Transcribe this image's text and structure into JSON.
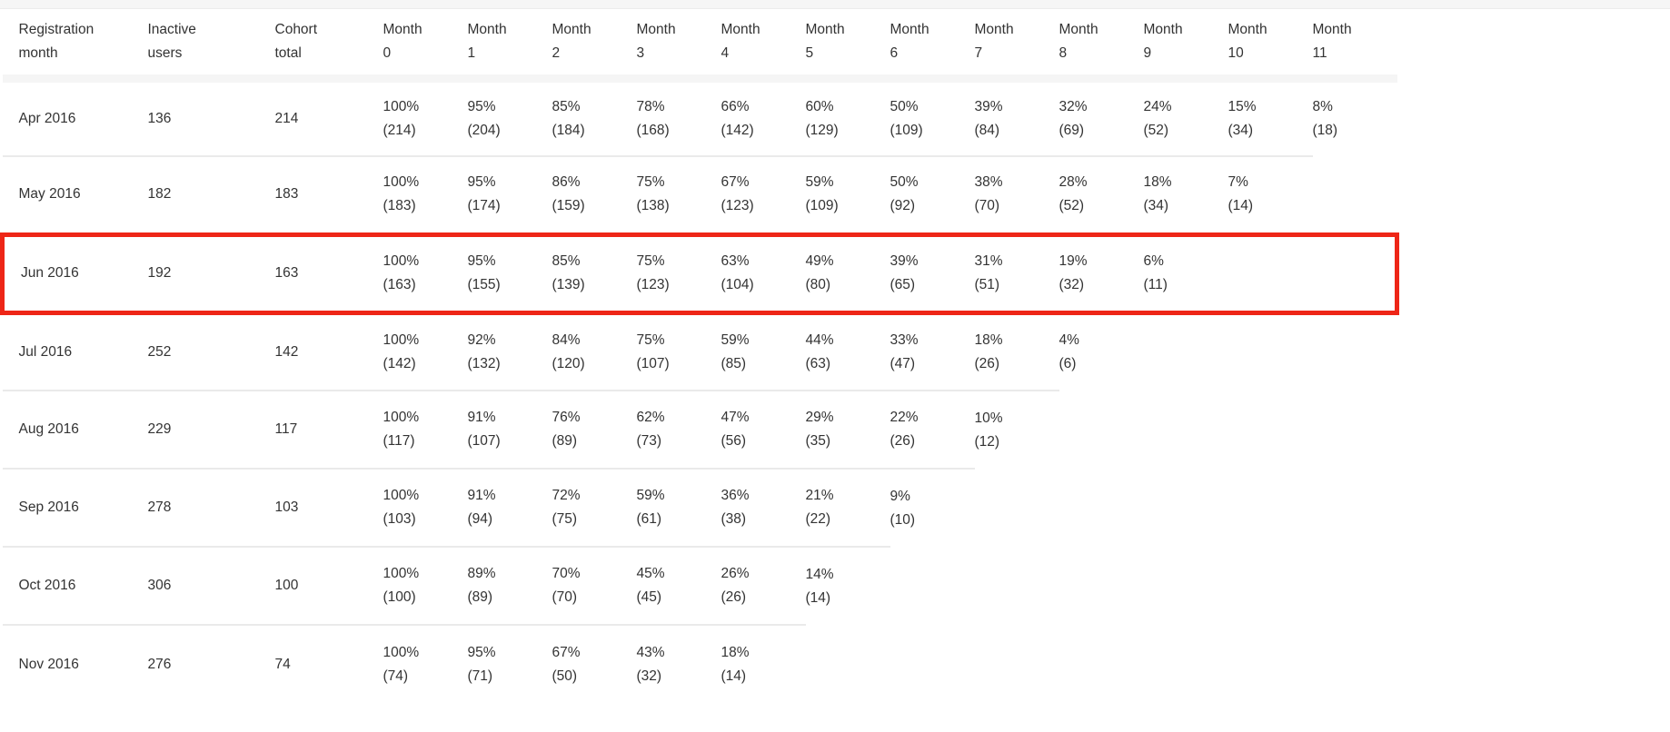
{
  "chart_data": {
    "type": "table",
    "title": "",
    "columns": [
      "Registration\nmonth",
      "Inactive\nusers",
      "Cohort\ntotal",
      "Month\n0",
      "Month\n1",
      "Month\n2",
      "Month\n3",
      "Month\n4",
      "Month\n5",
      "Month\n6",
      "Month\n7",
      "Month\n8",
      "Month\n9",
      "Month\n10",
      "Month\n11"
    ],
    "month_column_count": 12,
    "rows": [
      {
        "registration_month": "Apr 2016",
        "inactive_users": 136,
        "cohort_total": 214,
        "retention_pct": [
          100,
          95,
          85,
          78,
          66,
          60,
          50,
          39,
          32,
          24,
          15,
          8
        ],
        "retention_counts": [
          214,
          204,
          184,
          168,
          142,
          129,
          109,
          84,
          69,
          52,
          34,
          18
        ]
      },
      {
        "registration_month": "May 2016",
        "inactive_users": 182,
        "cohort_total": 183,
        "retention_pct": [
          100,
          95,
          86,
          75,
          67,
          59,
          50,
          38,
          28,
          18,
          7
        ],
        "retention_counts": [
          183,
          174,
          159,
          138,
          123,
          109,
          92,
          70,
          52,
          34,
          14
        ]
      },
      {
        "registration_month": "Jun 2016",
        "inactive_users": 192,
        "cohort_total": 163,
        "retention_pct": [
          100,
          95,
          85,
          75,
          63,
          49,
          39,
          31,
          19,
          6
        ],
        "retention_counts": [
          163,
          155,
          139,
          123,
          104,
          80,
          65,
          51,
          32,
          11
        ]
      },
      {
        "registration_month": "Jul 2016",
        "inactive_users": 252,
        "cohort_total": 142,
        "retention_pct": [
          100,
          92,
          84,
          75,
          59,
          44,
          33,
          18,
          4
        ],
        "retention_counts": [
          142,
          132,
          120,
          107,
          85,
          63,
          47,
          26,
          6
        ]
      },
      {
        "registration_month": "Aug 2016",
        "inactive_users": 229,
        "cohort_total": 117,
        "retention_pct": [
          100,
          91,
          76,
          62,
          47,
          29,
          22,
          10
        ],
        "retention_counts": [
          117,
          107,
          89,
          73,
          56,
          35,
          26,
          12
        ]
      },
      {
        "registration_month": "Sep 2016",
        "inactive_users": 278,
        "cohort_total": 103,
        "retention_pct": [
          100,
          91,
          72,
          59,
          36,
          21,
          9
        ],
        "retention_counts": [
          103,
          94,
          75,
          61,
          38,
          22,
          10
        ]
      },
      {
        "registration_month": "Oct 2016",
        "inactive_users": 306,
        "cohort_total": 100,
        "retention_pct": [
          100,
          89,
          70,
          45,
          26,
          14
        ],
        "retention_counts": [
          100,
          89,
          70,
          45,
          26,
          14
        ]
      },
      {
        "registration_month": "Nov 2016",
        "inactive_users": 276,
        "cohort_total": 74,
        "retention_pct": [
          100,
          95,
          67,
          43,
          18
        ],
        "retention_counts": [
          74,
          71,
          50,
          32,
          14
        ]
      }
    ],
    "highlight": {
      "row": "Jun 2016",
      "color": "#ee2617",
      "border_px": 5
    },
    "cell_format": "pct% (count)",
    "layout": {
      "grid": "row-separators-only",
      "header_band_color": "#f5f5f5",
      "row_line_color": "#eaeaea"
    }
  }
}
